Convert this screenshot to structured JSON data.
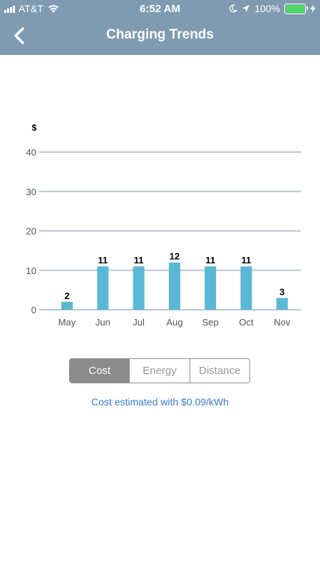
{
  "status_bar": {
    "carrier": "AT&T",
    "time": "6:52 AM",
    "battery": "100%",
    "battery_color": "#4cd964"
  },
  "header": {
    "title": "Charging Trends",
    "back_icon": "chevron-left-icon",
    "background": "#7f9bb2"
  },
  "chart_data": {
    "type": "bar",
    "ylabel": "$",
    "ylim": [
      0,
      40
    ],
    "yticks": [
      0,
      10,
      20,
      30,
      40
    ],
    "categories": [
      "May",
      "Jun",
      "Jul",
      "Aug",
      "Sep",
      "Oct",
      "Nov"
    ],
    "values": [
      2,
      11,
      11,
      12,
      11,
      11,
      3
    ],
    "bar_color": "#5bb8d4",
    "grid": true
  },
  "segments": {
    "items": [
      "Cost",
      "Energy",
      "Distance"
    ],
    "selected": "Cost"
  },
  "note": "Cost estimated with $0.09/kWh"
}
